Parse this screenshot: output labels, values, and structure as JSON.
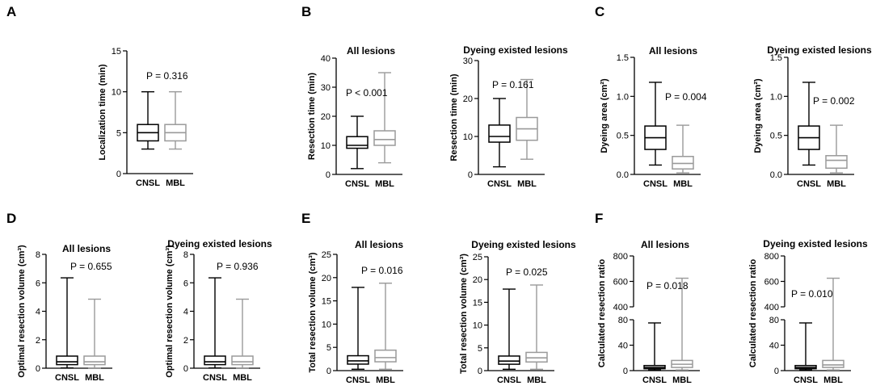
{
  "figure": {
    "colors": {
      "CNSL": "#000000",
      "MBL": "#9a9a9a",
      "axis": "#000000"
    }
  },
  "chart_data": [
    {
      "id": "A1",
      "panel_letter": "A",
      "type": "box",
      "title": "",
      "ylabel": "Localization time (min)",
      "ylim": [
        0,
        15
      ],
      "yticks": [
        0,
        5,
        10,
        15
      ],
      "categories": [
        "CNSL",
        "MBL"
      ],
      "pvalue": "P = 0.316",
      "boxes": [
        {
          "name": "CNSL",
          "min": 3,
          "q1": 4,
          "median": 5,
          "q3": 6,
          "max": 10
        },
        {
          "name": "MBL",
          "min": 3,
          "q1": 4,
          "median": 5,
          "q3": 6,
          "max": 10
        }
      ]
    },
    {
      "id": "B1",
      "panel_letter": "B",
      "type": "box",
      "title": "All lesions",
      "ylabel": "Resection time (min)",
      "ylim": [
        0,
        40
      ],
      "yticks": [
        0,
        10,
        20,
        30,
        40
      ],
      "categories": [
        "CNSL",
        "MBL"
      ],
      "pvalue": "P < 0.001",
      "boxes": [
        {
          "name": "CNSL",
          "min": 2,
          "q1": 9,
          "median": 10,
          "q3": 13,
          "max": 20
        },
        {
          "name": "MBL",
          "min": 4,
          "q1": 10,
          "median": 12,
          "q3": 15,
          "max": 35
        }
      ]
    },
    {
      "id": "B2",
      "panel_letter": "",
      "type": "box",
      "title": "Dyeing existed lesions",
      "ylabel": "Resection time (min)",
      "ylim": [
        0,
        30
      ],
      "yticks": [
        0,
        10,
        20,
        30
      ],
      "categories": [
        "CNSL",
        "MBL"
      ],
      "pvalue": "P = 0.161",
      "boxes": [
        {
          "name": "CNSL",
          "min": 2,
          "q1": 8.5,
          "median": 10,
          "q3": 13,
          "max": 20
        },
        {
          "name": "MBL",
          "min": 4,
          "q1": 9,
          "median": 12,
          "q3": 15,
          "max": 25
        }
      ]
    },
    {
      "id": "C1",
      "panel_letter": "C",
      "type": "box",
      "title": "All lesions",
      "ylabel": "Dyeing area  (cm²)",
      "ylim": [
        0,
        1.5
      ],
      "yticks": [
        0.0,
        0.5,
        1.0,
        1.5
      ],
      "ytick_decimals": 1,
      "categories": [
        "CNSL",
        "MBL"
      ],
      "pvalue": "P = 0.004",
      "boxes": [
        {
          "name": "CNSL",
          "min": 0.12,
          "q1": 0.32,
          "median": 0.47,
          "q3": 0.62,
          "max": 1.18
        },
        {
          "name": "MBL",
          "min": 0.02,
          "q1": 0.07,
          "median": 0.14,
          "q3": 0.23,
          "max": 0.63
        }
      ]
    },
    {
      "id": "C2",
      "panel_letter": "",
      "type": "box",
      "title": "Dyeing existed lesions",
      "ylabel": "Dyeing area  (cm²)",
      "ylim": [
        0,
        1.5
      ],
      "yticks": [
        0.0,
        0.5,
        1.0,
        1.5
      ],
      "ytick_decimals": 1,
      "categories": [
        "CNSL",
        "MBL"
      ],
      "pvalue": "P = 0.002",
      "boxes": [
        {
          "name": "CNSL",
          "min": 0.12,
          "q1": 0.32,
          "median": 0.47,
          "q3": 0.62,
          "max": 1.18
        },
        {
          "name": "MBL",
          "min": 0.02,
          "q1": 0.08,
          "median": 0.18,
          "q3": 0.24,
          "max": 0.63
        }
      ]
    },
    {
      "id": "D1",
      "panel_letter": "D",
      "type": "box",
      "title": "All lesions",
      "ylabel": "Optimal resection volume  (cm³)",
      "ylim": [
        0,
        8
      ],
      "yticks": [
        0,
        2,
        4,
        6,
        8
      ],
      "categories": [
        "CNSL",
        "MBL"
      ],
      "pvalue": "P = 0.655",
      "boxes": [
        {
          "name": "CNSL",
          "min": 0.02,
          "q1": 0.25,
          "median": 0.45,
          "q3": 0.85,
          "max": 6.35
        },
        {
          "name": "MBL",
          "min": 0.02,
          "q1": 0.25,
          "median": 0.45,
          "q3": 0.85,
          "max": 4.85
        }
      ]
    },
    {
      "id": "D2",
      "panel_letter": "",
      "type": "box",
      "title": "Dyeing existed lesions",
      "ylabel": "Optimal resection volume  (cm³)",
      "ylim": [
        0,
        8
      ],
      "yticks": [
        0,
        2,
        4,
        6,
        8
      ],
      "categories": [
        "CNSL",
        "MBL"
      ],
      "pvalue": "P = 0.936",
      "boxes": [
        {
          "name": "CNSL",
          "min": 0.02,
          "q1": 0.25,
          "median": 0.45,
          "q3": 0.85,
          "max": 6.35
        },
        {
          "name": "MBL",
          "min": 0.02,
          "q1": 0.25,
          "median": 0.45,
          "q3": 0.85,
          "max": 4.85
        }
      ]
    },
    {
      "id": "E1",
      "panel_letter": "E",
      "type": "box",
      "title": "All lesions",
      "ylabel": "Total resection volume  (cm³)",
      "ylim": [
        0,
        25
      ],
      "yticks": [
        0,
        5,
        10,
        15,
        20,
        25
      ],
      "categories": [
        "CNSL",
        "MBL"
      ],
      "pvalue": "P = 0.016",
      "boxes": [
        {
          "name": "CNSL",
          "min": 0.3,
          "q1": 1.4,
          "median": 2.1,
          "q3": 3.2,
          "max": 17.9
        },
        {
          "name": "MBL",
          "min": 0.3,
          "q1": 1.9,
          "median": 2.8,
          "q3": 4.4,
          "max": 18.8
        }
      ]
    },
    {
      "id": "E2",
      "panel_letter": "",
      "type": "box",
      "title": "Dyeing existed lesions",
      "ylabel": "Total resection volume  (cm³)",
      "ylim": [
        0,
        25
      ],
      "yticks": [
        0,
        5,
        10,
        15,
        20,
        25
      ],
      "categories": [
        "CNSL",
        "MBL"
      ],
      "pvalue": "P = 0.025",
      "boxes": [
        {
          "name": "CNSL",
          "min": 0.3,
          "q1": 1.4,
          "median": 2.1,
          "q3": 3.2,
          "max": 17.9
        },
        {
          "name": "MBL",
          "min": 0.3,
          "q1": 1.9,
          "median": 2.8,
          "q3": 4.0,
          "max": 18.8
        }
      ]
    },
    {
      "id": "F1",
      "panel_letter": "F",
      "type": "box",
      "title": "All lesions",
      "ylabel": "Calculated resection ratio",
      "axis_break": {
        "lower": [
          0,
          80
        ],
        "upper": [
          400,
          800
        ]
      },
      "yticks_lower": [
        0,
        40,
        80
      ],
      "yticks_upper": [
        400,
        600,
        800
      ],
      "categories": [
        "CNSL",
        "MBL"
      ],
      "pvalue": "P = 0.018",
      "boxes": [
        {
          "name": "CNSL",
          "min": 1,
          "q1": 3,
          "median": 5,
          "q3": 8,
          "max": 75
        },
        {
          "name": "MBL",
          "min": 1,
          "q1": 5,
          "median": 10,
          "q3": 16,
          "max": 625
        }
      ]
    },
    {
      "id": "F2",
      "panel_letter": "",
      "type": "box",
      "title": "Dyeing existed lesions",
      "ylabel": "Calculated resection ratio",
      "axis_break": {
        "lower": [
          0,
          80
        ],
        "upper": [
          400,
          800
        ]
      },
      "yticks_lower": [
        0,
        40,
        80
      ],
      "yticks_upper": [
        400,
        600,
        800
      ],
      "categories": [
        "CNSL",
        "MBL"
      ],
      "pvalue": "P = 0.010",
      "boxes": [
        {
          "name": "CNSL",
          "min": 1,
          "q1": 3,
          "median": 5,
          "q3": 8,
          "max": 75
        },
        {
          "name": "MBL",
          "min": 1,
          "q1": 5,
          "median": 9,
          "q3": 16,
          "max": 625
        }
      ]
    }
  ]
}
